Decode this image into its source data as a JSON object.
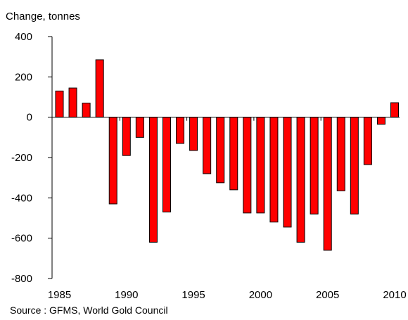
{
  "chart_data": {
    "type": "bar",
    "ylabel": "Change, tonnes",
    "ylim": [
      -800,
      400
    ],
    "yticks": [
      400,
      200,
      0,
      -200,
      -400,
      -600,
      -800
    ],
    "xtick_labels": [
      1985,
      1990,
      1995,
      2000,
      2005,
      2010
    ],
    "bar_color": "#ff0000",
    "grid": false,
    "categories": [
      1985,
      1986,
      1987,
      1988,
      1989,
      1990,
      1991,
      1992,
      1993,
      1994,
      1995,
      1996,
      1997,
      1998,
      1999,
      2000,
      2001,
      2002,
      2003,
      2004,
      2005,
      2006,
      2007,
      2008,
      2009,
      2010
    ],
    "values": [
      130,
      145,
      70,
      285,
      -430,
      -190,
      -100,
      -620,
      -470,
      -130,
      -165,
      -280,
      -325,
      -360,
      -475,
      -475,
      -520,
      -545,
      -620,
      -480,
      -660,
      -365,
      -480,
      -235,
      -35,
      72
    ]
  },
  "source": "Source : GFMS, World Gold Council"
}
